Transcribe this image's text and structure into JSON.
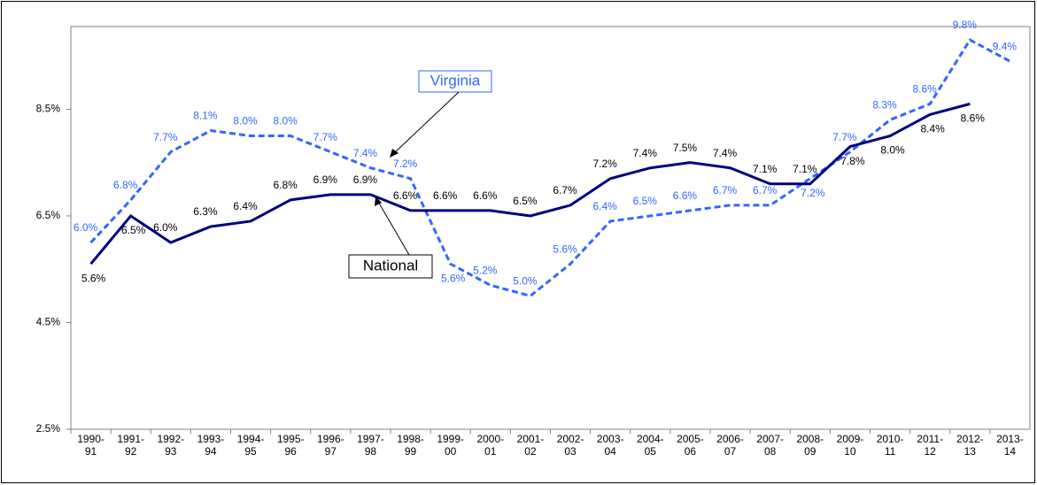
{
  "chart_data": {
    "type": "line",
    "categories": [
      "1990-91",
      "1991-92",
      "1992-93",
      "1993-94",
      "1994-95",
      "1995-96",
      "1996-97",
      "1997-98",
      "1998-99",
      "1999-00",
      "2000-01",
      "2001-02",
      "2002-03",
      "2003-04",
      "2004-05",
      "2005-06",
      "2006-07",
      "2007-08",
      "2008-09",
      "2009-10",
      "2010-11",
      "2011-12",
      "2012-13",
      "2013-14"
    ],
    "series": [
      {
        "name": "Virginia",
        "color": "#3366ff",
        "dash": true,
        "values": [
          6.0,
          6.8,
          7.7,
          8.1,
          8.0,
          8.0,
          7.7,
          7.4,
          7.2,
          5.6,
          5.2,
          5.0,
          5.6,
          6.4,
          6.5,
          6.6,
          6.7,
          6.7,
          7.2,
          7.7,
          8.3,
          8.6,
          9.8,
          9.4
        ],
        "value_labels": [
          "6.0%",
          "6.8%",
          "7.7%",
          "8.1%",
          "8.0%",
          "8.0%",
          "7.7%",
          "7.4%",
          "7.2%",
          "5.6%",
          "5.2%",
          "5.0%",
          "5.6%",
          "6.4%",
          "6.5%",
          "6.6%",
          "6.7%",
          "6.7%",
          "7.2%",
          "7.7%",
          "8.3%",
          "8.6%",
          "9.8%",
          "9.4%"
        ]
      },
      {
        "name": "National",
        "color": "#000080",
        "dash": false,
        "values": [
          5.6,
          6.5,
          6.0,
          6.3,
          6.4,
          6.8,
          6.9,
          6.9,
          6.6,
          6.6,
          6.6,
          6.5,
          6.7,
          7.2,
          7.4,
          7.5,
          7.4,
          7.1,
          7.1,
          7.8,
          8.0,
          8.4,
          8.6,
          null
        ],
        "value_labels": [
          "5.6%",
          "6.5%",
          "6.0%",
          "6.3%",
          "6.4%",
          "6.8%",
          "6.9%",
          "6.9%",
          "6.6%",
          "6.6%",
          "6.6%",
          "6.5%",
          "6.7%",
          "7.2%",
          "7.4%",
          "7.5%",
          "7.4%",
          "7.1%",
          "7.1%",
          "7.8%",
          "8.0%",
          "8.4%",
          "8.6%",
          null
        ]
      }
    ],
    "ylim": [
      2.5,
      10.05
    ],
    "yticks": [
      {
        "value": 2.5,
        "label": "2.5%"
      },
      {
        "value": 4.5,
        "label": "4.5%"
      },
      {
        "value": 6.5,
        "label": "6.5%"
      },
      {
        "value": 8.5,
        "label": "8.5%"
      }
    ],
    "grid": false
  }
}
